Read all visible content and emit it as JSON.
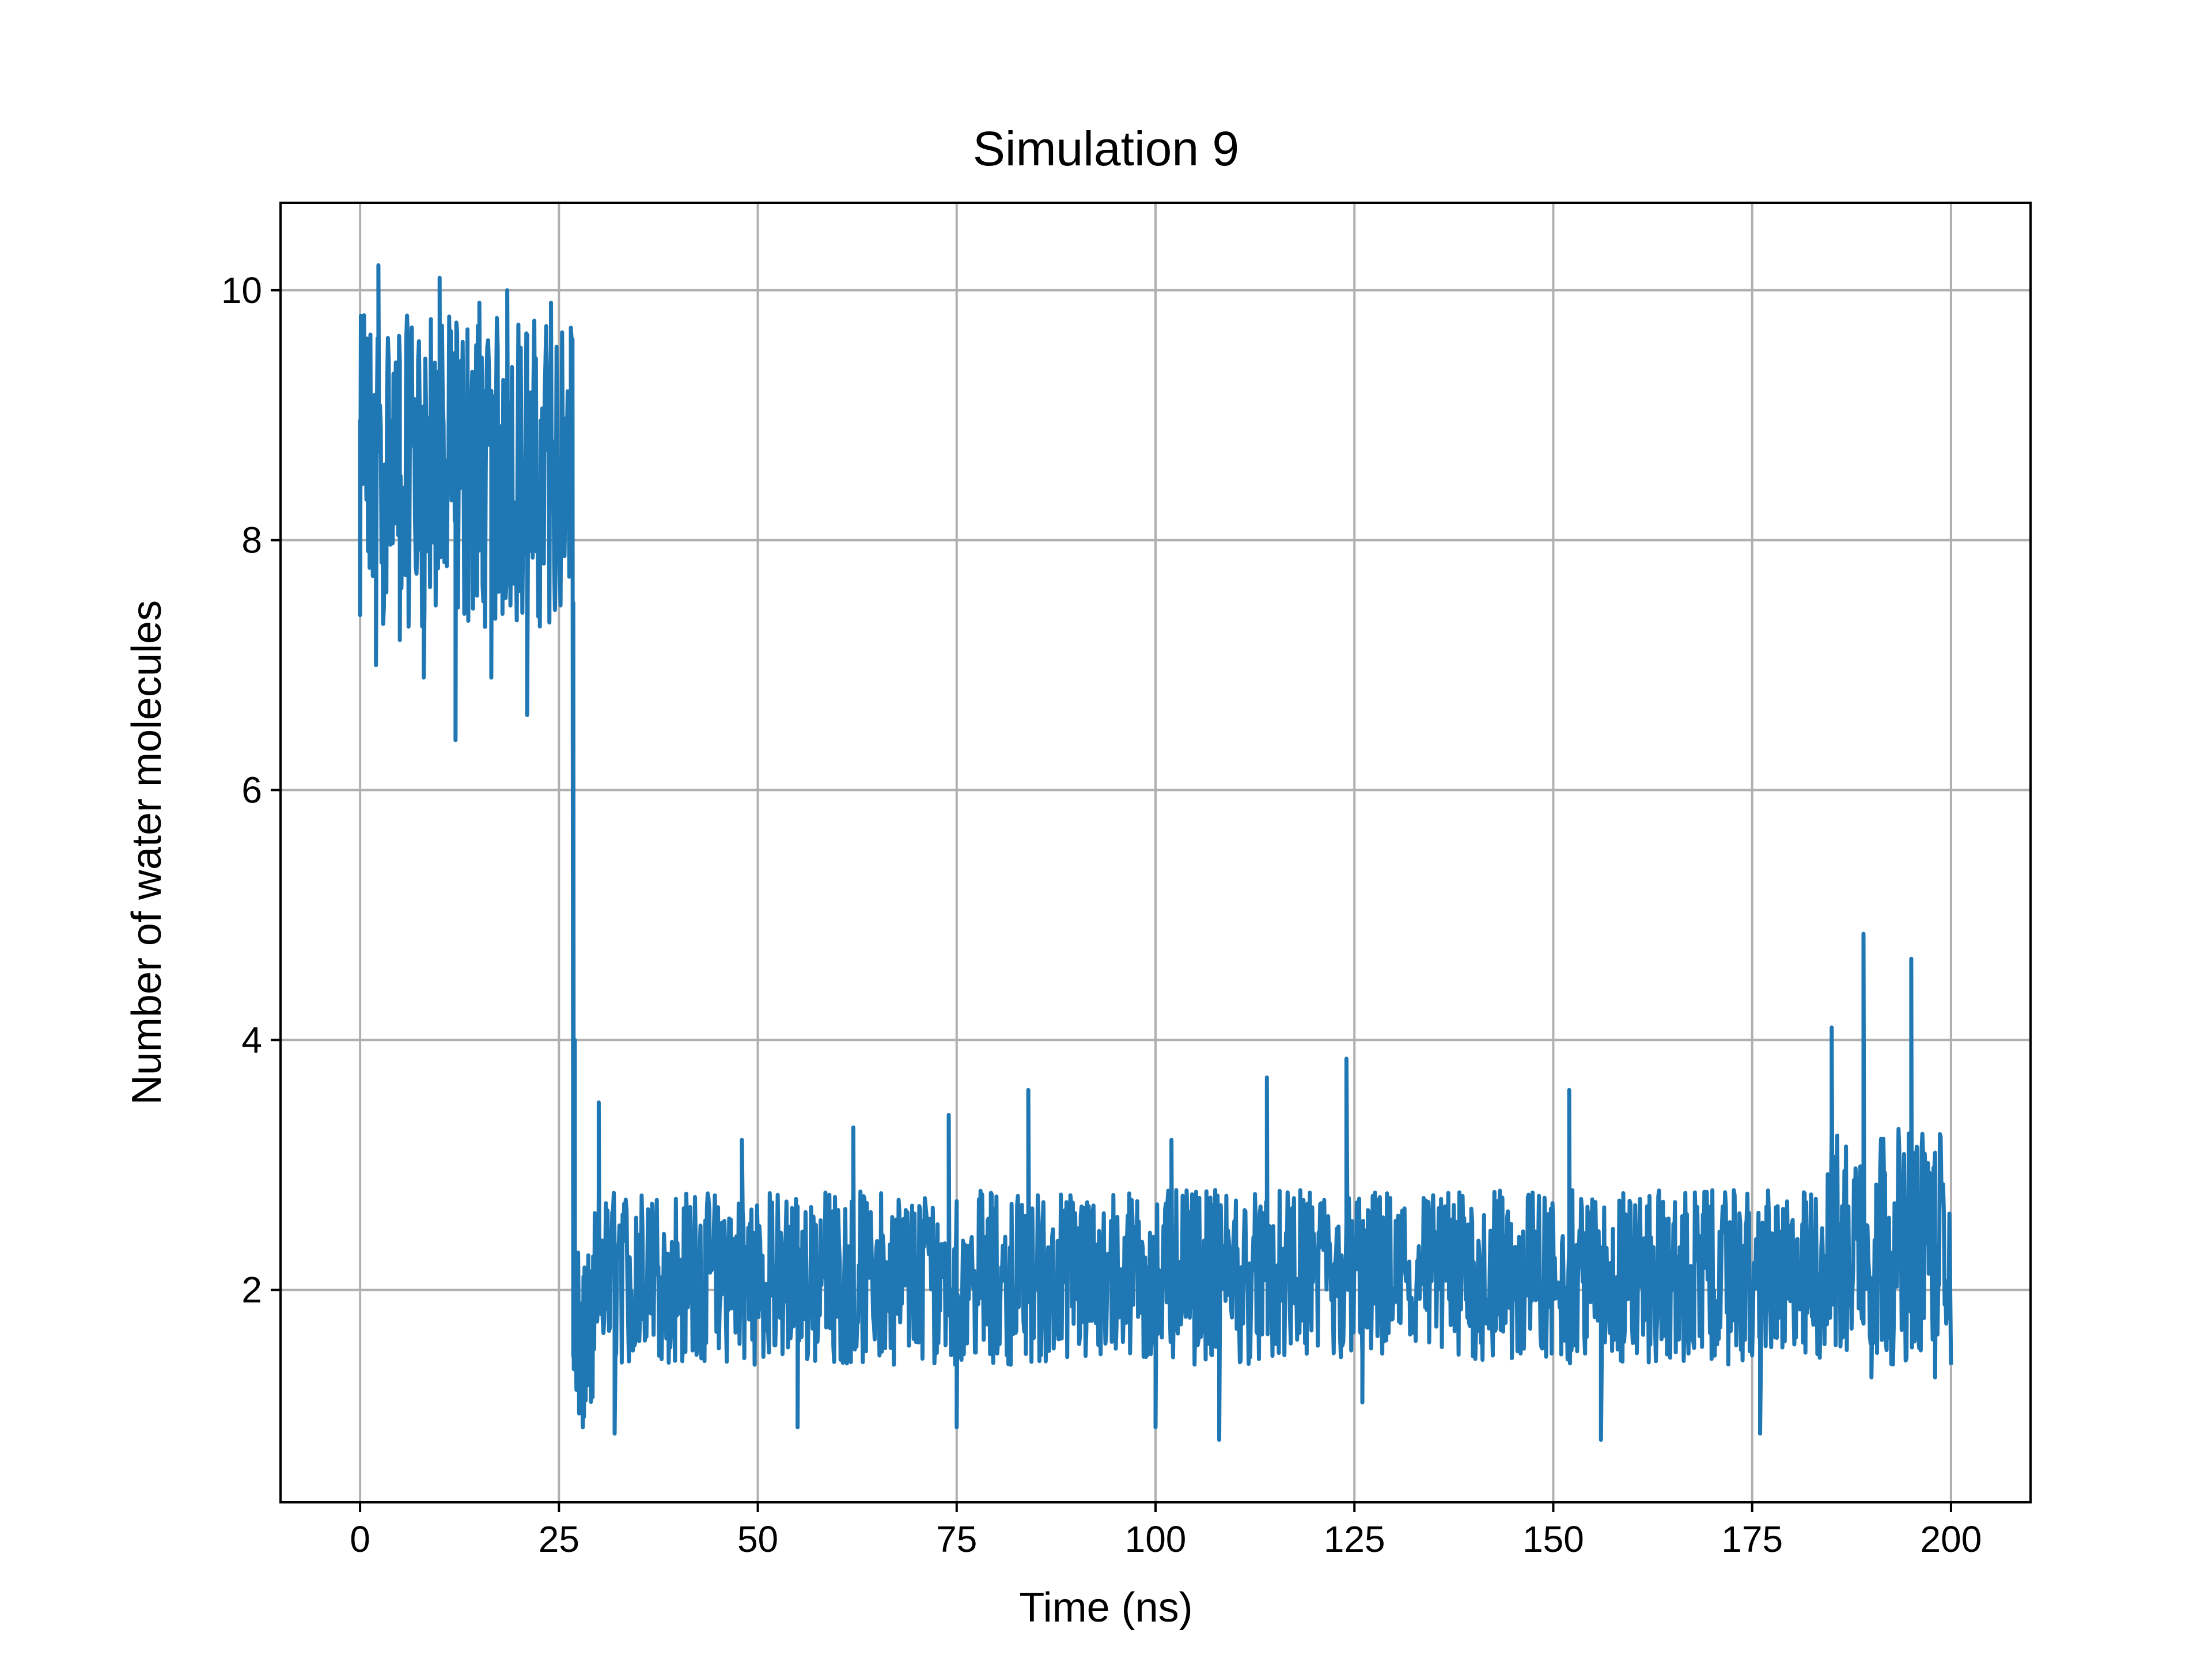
{
  "chart_data": {
    "type": "line",
    "title": "Simulation 9",
    "xlabel": "Time (ns)",
    "ylabel": "Number of water molecules",
    "xlim": [
      -10,
      210
    ],
    "ylim": [
      0.3,
      10.7
    ],
    "xticks": [
      0,
      25,
      50,
      75,
      100,
      125,
      150,
      175,
      200
    ],
    "xtick_labels": [
      "0",
      "25",
      "50",
      "75",
      "100",
      "125",
      "150",
      "175",
      "200"
    ],
    "yticks": [
      2,
      4,
      6,
      8,
      10
    ],
    "ytick_labels": [
      "2",
      "4",
      "6",
      "8",
      "10"
    ],
    "grid": true,
    "legend": "none",
    "series": [
      {
        "color": "#1f77b4",
        "segments": [
          {
            "x_start": 0,
            "x_end": 26.8,
            "baseline": 8.6,
            "band_low": 7.3,
            "band_high": 9.8
          },
          {
            "x_start": 26.8,
            "x_end": 29.5,
            "baseline": 1.6,
            "band_low": 0.9,
            "band_high": 2.3
          },
          {
            "x_start": 29.5,
            "x_end": 183,
            "baseline": 2.1,
            "band_low": 1.4,
            "band_high": 2.8
          },
          {
            "x_start": 183,
            "x_end": 200,
            "baseline": 2.3,
            "band_low": 1.4,
            "band_high": 3.3
          }
        ],
        "points": [
          [
            0.0,
            7.4
          ],
          [
            0.5,
            9.8
          ],
          [
            2.0,
            7.0
          ],
          [
            2.3,
            10.2
          ],
          [
            5.0,
            7.2
          ],
          [
            8.0,
            6.9
          ],
          [
            10.0,
            10.1
          ],
          [
            12.0,
            6.4
          ],
          [
            15.0,
            9.9
          ],
          [
            16.5,
            6.9
          ],
          [
            18.5,
            10.0
          ],
          [
            21.0,
            6.6
          ],
          [
            24.0,
            9.9
          ],
          [
            26.5,
            9.7
          ],
          [
            26.8,
            7.5
          ],
          [
            27.0,
            4.0
          ],
          [
            27.2,
            1.2
          ],
          [
            28.0,
            0.9
          ],
          [
            30.0,
            3.5
          ],
          [
            32.0,
            0.85
          ],
          [
            48.0,
            3.2
          ],
          [
            55.0,
            0.9
          ],
          [
            62.0,
            3.3
          ],
          [
            74.0,
            3.4
          ],
          [
            75.0,
            0.9
          ],
          [
            84.0,
            3.6
          ],
          [
            100.0,
            0.9
          ],
          [
            102.0,
            3.2
          ],
          [
            108.0,
            0.8
          ],
          [
            114.0,
            3.7
          ],
          [
            124.0,
            3.85
          ],
          [
            126.0,
            1.1
          ],
          [
            152.0,
            3.6
          ],
          [
            156.0,
            0.8
          ],
          [
            176.0,
            0.85
          ],
          [
            185.0,
            4.1
          ],
          [
            189.0,
            4.85
          ],
          [
            190.0,
            1.3
          ],
          [
            195.0,
            4.65
          ],
          [
            198.0,
            1.3
          ],
          [
            200.0,
            1.4
          ]
        ]
      }
    ]
  }
}
